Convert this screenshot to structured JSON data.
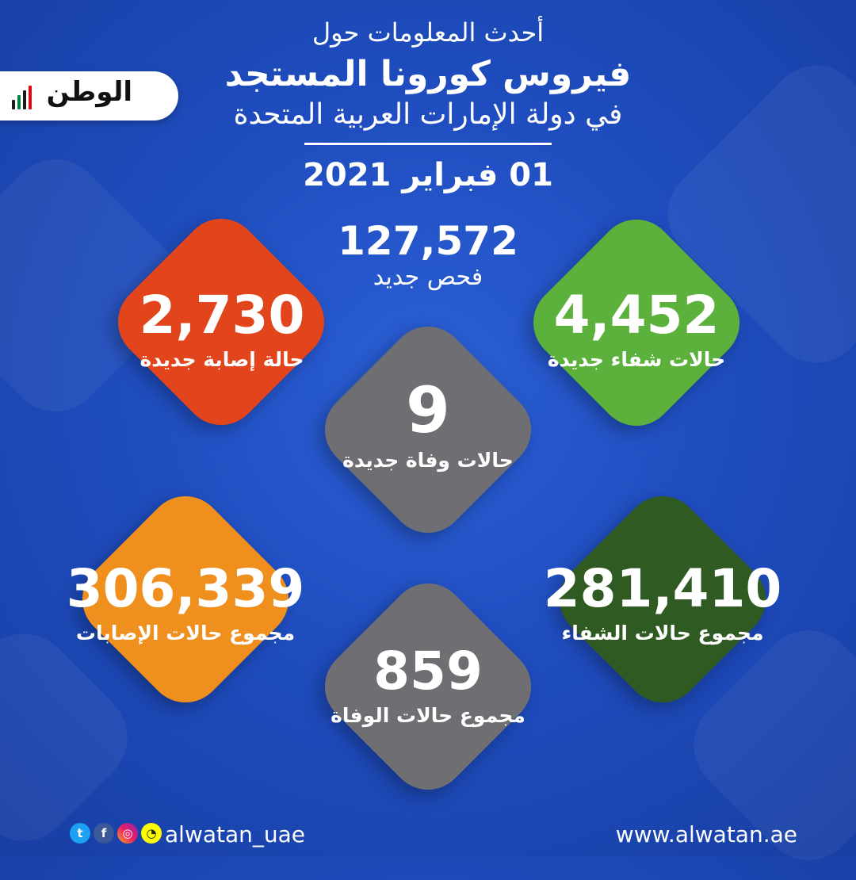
{
  "logo": {
    "text": "الوطن"
  },
  "header": {
    "line1": "أحدث المعلومات حول",
    "line2": "فيروس كورونا المستجد",
    "line3": "في دولة الإمارات العربية المتحدة",
    "date": "01 فبراير 2021"
  },
  "tests": {
    "value": "127,572",
    "label": "فحص جديد"
  },
  "stats": {
    "new_cases": {
      "value": "2,730",
      "label": "حالة إصابة جديدة",
      "color": "#e2441c"
    },
    "new_recoveries": {
      "value": "4,452",
      "label": "حالات شفاء جديدة",
      "color": "#5cb13c"
    },
    "new_deaths": {
      "value": "9",
      "label": "حالات وفاة جديدة",
      "color": "#6f6f73"
    },
    "total_cases": {
      "value": "306,339",
      "label": "مجموع حالات الإصابات",
      "color": "#ef8f1d"
    },
    "total_recoveries": {
      "value": "281,410",
      "label": "مجموع حالات الشفاء",
      "color": "#2f5a22"
    },
    "total_deaths": {
      "value": "859",
      "label": "مجموع حالات الوفاة",
      "color": "#6f6f73"
    }
  },
  "footer": {
    "handle": "alwatan_uae",
    "website": "www.alwatan.ae",
    "icons": [
      "twitter-icon",
      "facebook-icon",
      "instagram-icon",
      "snapchat-icon"
    ]
  }
}
